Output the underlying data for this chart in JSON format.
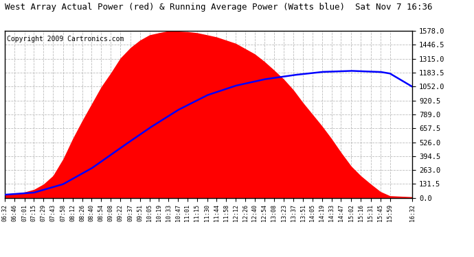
{
  "title": "West Array Actual Power (red) & Running Average Power (Watts blue)  Sat Nov 7 16:36",
  "copyright": "Copyright 2009 Cartronics.com",
  "ylabel_right": [
    "0.0",
    "131.5",
    "263.0",
    "394.5",
    "526.0",
    "657.5",
    "789.0",
    "920.5",
    "1052.0",
    "1183.5",
    "1315.0",
    "1446.5",
    "1578.0"
  ],
  "yticks": [
    0.0,
    131.5,
    263.0,
    394.5,
    526.0,
    657.5,
    789.0,
    920.5,
    1052.0,
    1183.5,
    1315.0,
    1446.5,
    1578.0
  ],
  "ymax": 1578.0,
  "ymin": 0.0,
  "xtick_labels": [
    "06:32",
    "06:46",
    "07:01",
    "07:15",
    "07:29",
    "07:43",
    "07:58",
    "08:12",
    "08:26",
    "08:40",
    "08:54",
    "09:08",
    "09:22",
    "09:37",
    "09:51",
    "10:05",
    "10:19",
    "10:33",
    "10:47",
    "11:01",
    "11:15",
    "11:30",
    "11:44",
    "11:58",
    "12:12",
    "12:26",
    "12:40",
    "12:54",
    "13:08",
    "13:23",
    "13:37",
    "13:51",
    "14:05",
    "14:19",
    "14:33",
    "14:47",
    "15:02",
    "15:16",
    "15:31",
    "15:45",
    "15:59",
    "16:32"
  ],
  "background_color": "#ffffff",
  "plot_bg_color": "#ffffff",
  "red_color": "#ff0000",
  "blue_color": "#0000ff",
  "grid_color": "#aaaaaa",
  "title_color": "#000000",
  "title_fontsize": 9,
  "copyright_fontsize": 7,
  "red_keypoints_t": [
    392,
    406,
    421,
    435,
    449,
    463,
    478,
    492,
    506,
    520,
    534,
    548,
    562,
    577,
    591,
    605,
    619,
    633,
    647,
    661,
    675,
    690,
    704,
    718,
    732,
    746,
    760,
    774,
    788,
    803,
    817,
    831,
    845,
    859,
    873,
    887,
    902,
    916,
    931,
    945,
    959,
    992
  ],
  "red_keypoints_v": [
    30,
    40,
    55,
    80,
    130,
    210,
    370,
    560,
    730,
    890,
    1050,
    1180,
    1320,
    1420,
    1490,
    1540,
    1560,
    1578,
    1575,
    1570,
    1560,
    1540,
    1520,
    1490,
    1460,
    1410,
    1360,
    1290,
    1210,
    1120,
    1020,
    900,
    790,
    680,
    560,
    430,
    300,
    210,
    130,
    60,
    20,
    10
  ],
  "blue_keypoints_t": [
    392,
    435,
    478,
    520,
    562,
    605,
    647,
    690,
    732,
    774,
    817,
    859,
    902,
    945,
    959,
    992
  ],
  "blue_keypoints_v": [
    30,
    50,
    130,
    280,
    470,
    660,
    830,
    970,
    1060,
    1120,
    1160,
    1190,
    1200,
    1190,
    1175,
    1050
  ]
}
